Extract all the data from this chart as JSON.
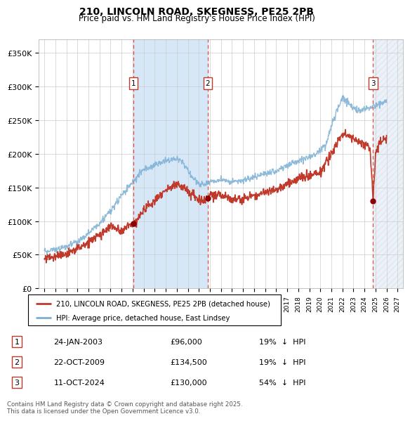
{
  "title": "210, LINCOLN ROAD, SKEGNESS, PE25 2PB",
  "subtitle": "Price paid vs. HM Land Registry's House Price Index (HPI)",
  "hpi_label": "HPI: Average price, detached house, East Lindsey",
  "price_label": "210, LINCOLN ROAD, SKEGNESS, PE25 2PB (detached house)",
  "footnote": "Contains HM Land Registry data © Crown copyright and database right 2025.\nThis data is licensed under the Open Government Licence v3.0.",
  "transactions": [
    {
      "num": 1,
      "date": "24-JAN-2003",
      "price": 96000,
      "pct": "19%",
      "dir": "↓",
      "x": 2003.07
    },
    {
      "num": 2,
      "date": "22-OCT-2009",
      "price": 134500,
      "pct": "19%",
      "dir": "↓",
      "x": 2009.81
    },
    {
      "num": 3,
      "date": "11-OCT-2024",
      "price": 130000,
      "pct": "54%",
      "dir": "↓",
      "x": 2024.78
    }
  ],
  "ylim": [
    0,
    370000
  ],
  "yticks": [
    0,
    50000,
    100000,
    150000,
    200000,
    250000,
    300000,
    350000
  ],
  "ytick_labels": [
    "£0",
    "£50K",
    "£100K",
    "£150K",
    "£200K",
    "£250K",
    "£300K",
    "£350K"
  ],
  "xlim": [
    1994.5,
    2027.5
  ],
  "hpi_color": "#7bafd4",
  "price_color": "#c0392b",
  "dashed_color": "#e74c3c",
  "shade_color": "#d6e8f7",
  "bg_color": "#ffffff",
  "grid_color": "#cccccc",
  "box_color": "#c0392b",
  "dot_color": "#8b0000"
}
